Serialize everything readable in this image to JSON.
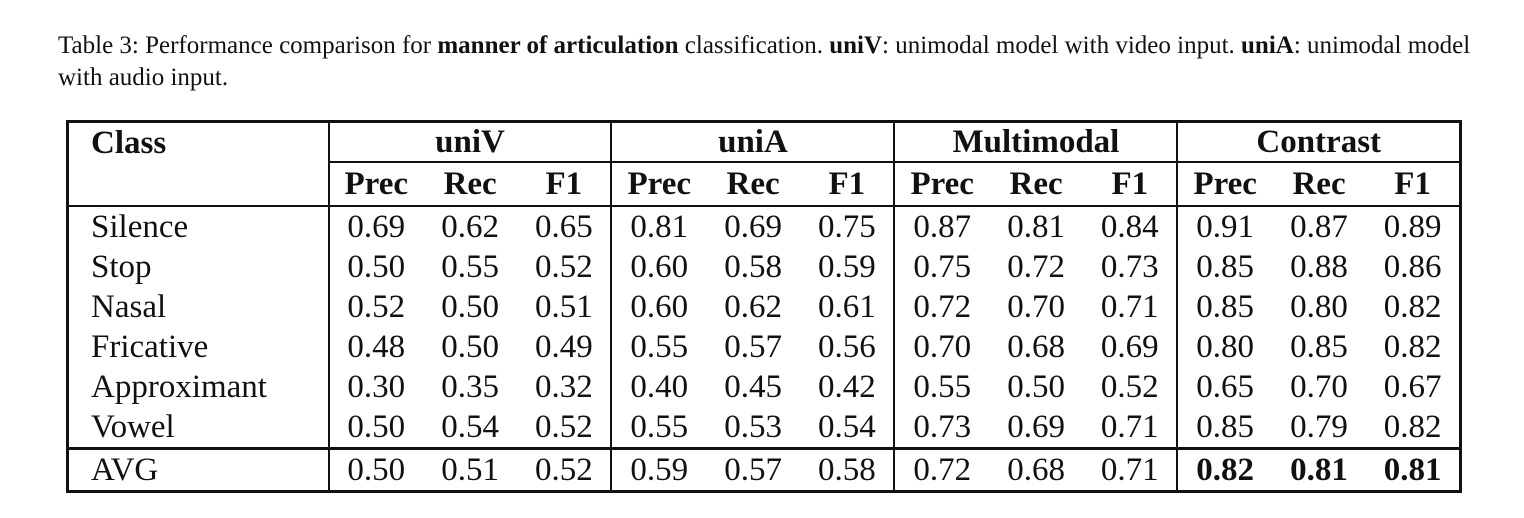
{
  "caption": {
    "label": "Table 3:",
    "part1": " Performance comparison for ",
    "bold1": "manner of articulation",
    "part2": " classification. ",
    "bold2": "uniV",
    "part3": ": unimodal model with video input. ",
    "bold3": "uniA",
    "part4": ": unimodal model with audio input."
  },
  "table": {
    "class_header": "Class",
    "groups": [
      "uniV",
      "uniA",
      "Multimodal",
      "Contrast"
    ],
    "metrics": [
      "Prec",
      "Rec",
      "F1"
    ],
    "rows": [
      {
        "name": "Silence",
        "values": [
          "0.69",
          "0.62",
          "0.65",
          "0.81",
          "0.69",
          "0.75",
          "0.87",
          "0.81",
          "0.84",
          "0.91",
          "0.87",
          "0.89"
        ]
      },
      {
        "name": "Stop",
        "values": [
          "0.50",
          "0.55",
          "0.52",
          "0.60",
          "0.58",
          "0.59",
          "0.75",
          "0.72",
          "0.73",
          "0.85",
          "0.88",
          "0.86"
        ]
      },
      {
        "name": "Nasal",
        "values": [
          "0.52",
          "0.50",
          "0.51",
          "0.60",
          "0.62",
          "0.61",
          "0.72",
          "0.70",
          "0.71",
          "0.85",
          "0.80",
          "0.82"
        ]
      },
      {
        "name": "Fricative",
        "values": [
          "0.48",
          "0.50",
          "0.49",
          "0.55",
          "0.57",
          "0.56",
          "0.70",
          "0.68",
          "0.69",
          "0.80",
          "0.85",
          "0.82"
        ]
      },
      {
        "name": "Approximant",
        "values": [
          "0.30",
          "0.35",
          "0.32",
          "0.40",
          "0.45",
          "0.42",
          "0.55",
          "0.50",
          "0.52",
          "0.65",
          "0.70",
          "0.67"
        ]
      },
      {
        "name": "Vowel",
        "values": [
          "0.50",
          "0.54",
          "0.52",
          "0.55",
          "0.53",
          "0.54",
          "0.73",
          "0.69",
          "0.71",
          "0.85",
          "0.79",
          "0.82"
        ]
      }
    ],
    "avg": {
      "name": "AVG",
      "values": [
        "0.50",
        "0.51",
        "0.52",
        "0.59",
        "0.57",
        "0.58",
        "0.72",
        "0.68",
        "0.71",
        "0.82",
        "0.81",
        "0.81"
      ]
    }
  }
}
